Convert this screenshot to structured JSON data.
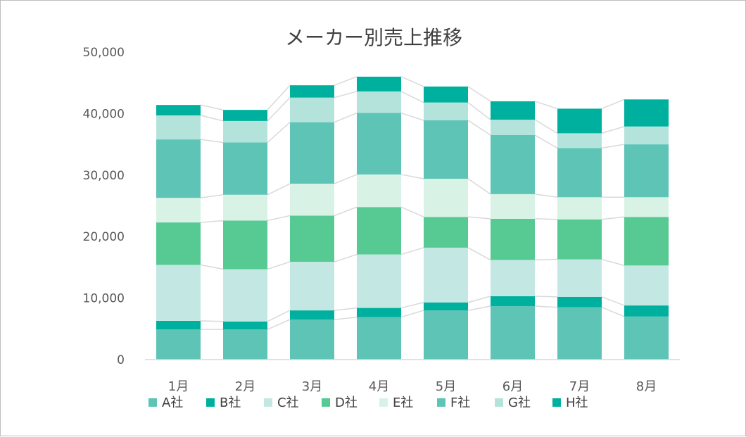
{
  "chart_data": {
    "type": "bar",
    "stacked": true,
    "title": "メーカー別売上推移",
    "xlabel": "",
    "ylabel": "",
    "categories": [
      "1月",
      "2月",
      "3月",
      "4月",
      "5月",
      "6月",
      "7月",
      "8月"
    ],
    "yticks": [
      "0",
      "10,000",
      "20,000",
      "30,000",
      "40,000",
      "50,000"
    ],
    "ylim": [
      0,
      50000
    ],
    "grid": false,
    "legend_position": "bottom",
    "series_connectors": true,
    "series": [
      {
        "name": "A社",
        "color": "#5ec4b6",
        "values": [
          4900,
          4900,
          6500,
          6900,
          8000,
          8700,
          8500,
          7000
        ]
      },
      {
        "name": "B社",
        "color": "#00b09e",
        "values": [
          1400,
          1300,
          1500,
          1500,
          1300,
          1600,
          1700,
          1800
        ]
      },
      {
        "name": "C社",
        "color": "#c3e8e3",
        "values": [
          9100,
          8500,
          7900,
          8700,
          8900,
          5900,
          6100,
          6500
        ]
      },
      {
        "name": "D社",
        "color": "#57c993",
        "values": [
          6900,
          7900,
          7500,
          7700,
          5000,
          6700,
          6500,
          7900
        ]
      },
      {
        "name": "E社",
        "color": "#d8f3e6",
        "values": [
          4000,
          4200,
          5200,
          5300,
          6200,
          4000,
          3600,
          3200
        ]
      },
      {
        "name": "F社",
        "color": "#5ec4b6",
        "values": [
          9500,
          8500,
          10000,
          10000,
          9500,
          9600,
          8000,
          8600
        ]
      },
      {
        "name": "G社",
        "color": "#b4e3dc",
        "values": [
          3900,
          3500,
          4000,
          3500,
          2900,
          2500,
          2400,
          2900
        ]
      },
      {
        "name": "H社",
        "color": "#00b09e",
        "values": [
          1700,
          1800,
          2000,
          2400,
          2600,
          3000,
          4000,
          4400
        ]
      }
    ]
  }
}
